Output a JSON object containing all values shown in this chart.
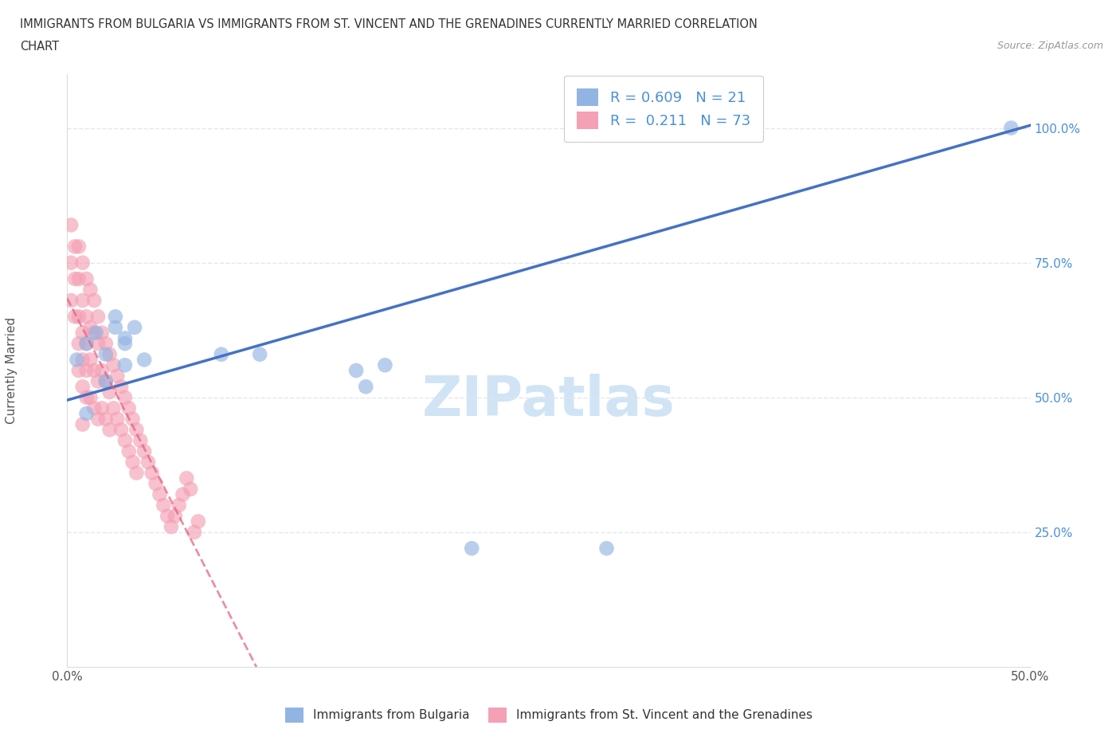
{
  "title_line1": "IMMIGRANTS FROM BULGARIA VS IMMIGRANTS FROM ST. VINCENT AND THE GRENADINES CURRENTLY MARRIED CORRELATION",
  "title_line2": "CHART",
  "source": "Source: ZipAtlas.com",
  "ylabel": "Currently Married",
  "xlim": [
    0.0,
    0.5
  ],
  "ylim": [
    0.0,
    1.1
  ],
  "xtick_positions": [
    0.0,
    0.1,
    0.2,
    0.3,
    0.4,
    0.5
  ],
  "xticklabels": [
    "0.0%",
    "",
    "",
    "",
    "",
    "50.0%"
  ],
  "ytick_positions": [
    0.25,
    0.5,
    0.75,
    1.0
  ],
  "ytick_labels": [
    "25.0%",
    "50.0%",
    "75.0%",
    "100.0%"
  ],
  "R_bulgaria": 0.609,
  "N_bulgaria": 21,
  "R_stvincent": 0.211,
  "N_stvincent": 73,
  "blue_color": "#92B4E3",
  "pink_color": "#F4A0B5",
  "trend_blue": "#4472C4",
  "trend_pink": "#E06080",
  "watermark": "ZIPatlas",
  "watermark_color": "#D0E4F5",
  "legend_label_blue": "Immigrants from Bulgaria",
  "legend_label_pink": "Immigrants from St. Vincent and the Grenadines",
  "bulgaria_x": [
    0.005,
    0.01,
    0.015,
    0.02,
    0.025,
    0.03,
    0.025,
    0.03,
    0.035,
    0.04,
    0.08,
    0.1,
    0.01,
    0.02,
    0.03,
    0.15,
    0.155,
    0.165,
    0.21,
    0.28,
    0.49
  ],
  "bulgaria_y": [
    0.57,
    0.6,
    0.62,
    0.58,
    0.63,
    0.6,
    0.65,
    0.61,
    0.63,
    0.57,
    0.58,
    0.58,
    0.47,
    0.53,
    0.56,
    0.55,
    0.52,
    0.56,
    0.22,
    0.22,
    1.0
  ],
  "stvincent_x": [
    0.002,
    0.002,
    0.002,
    0.004,
    0.004,
    0.004,
    0.006,
    0.006,
    0.006,
    0.006,
    0.006,
    0.008,
    0.008,
    0.008,
    0.008,
    0.008,
    0.008,
    0.01,
    0.01,
    0.01,
    0.01,
    0.01,
    0.012,
    0.012,
    0.012,
    0.012,
    0.014,
    0.014,
    0.014,
    0.014,
    0.016,
    0.016,
    0.016,
    0.016,
    0.018,
    0.018,
    0.018,
    0.02,
    0.02,
    0.02,
    0.022,
    0.022,
    0.022,
    0.024,
    0.024,
    0.026,
    0.026,
    0.028,
    0.028,
    0.03,
    0.03,
    0.032,
    0.032,
    0.034,
    0.034,
    0.036,
    0.036,
    0.038,
    0.04,
    0.042,
    0.044,
    0.046,
    0.048,
    0.05,
    0.052,
    0.054,
    0.056,
    0.058,
    0.06,
    0.062,
    0.064,
    0.066,
    0.068
  ],
  "stvincent_y": [
    0.82,
    0.75,
    0.68,
    0.78,
    0.72,
    0.65,
    0.78,
    0.72,
    0.65,
    0.6,
    0.55,
    0.75,
    0.68,
    0.62,
    0.57,
    0.52,
    0.45,
    0.72,
    0.65,
    0.6,
    0.55,
    0.5,
    0.7,
    0.63,
    0.57,
    0.5,
    0.68,
    0.62,
    0.55,
    0.48,
    0.65,
    0.6,
    0.53,
    0.46,
    0.62,
    0.55,
    0.48,
    0.6,
    0.53,
    0.46,
    0.58,
    0.51,
    0.44,
    0.56,
    0.48,
    0.54,
    0.46,
    0.52,
    0.44,
    0.5,
    0.42,
    0.48,
    0.4,
    0.46,
    0.38,
    0.44,
    0.36,
    0.42,
    0.4,
    0.38,
    0.36,
    0.34,
    0.32,
    0.3,
    0.28,
    0.26,
    0.28,
    0.3,
    0.32,
    0.35,
    0.33,
    0.25,
    0.27
  ],
  "bg_color": "#FFFFFF",
  "grid_color": "#E0E8F0",
  "axis_color": "#AAAAAA",
  "ytick_color": "#4A90D9"
}
